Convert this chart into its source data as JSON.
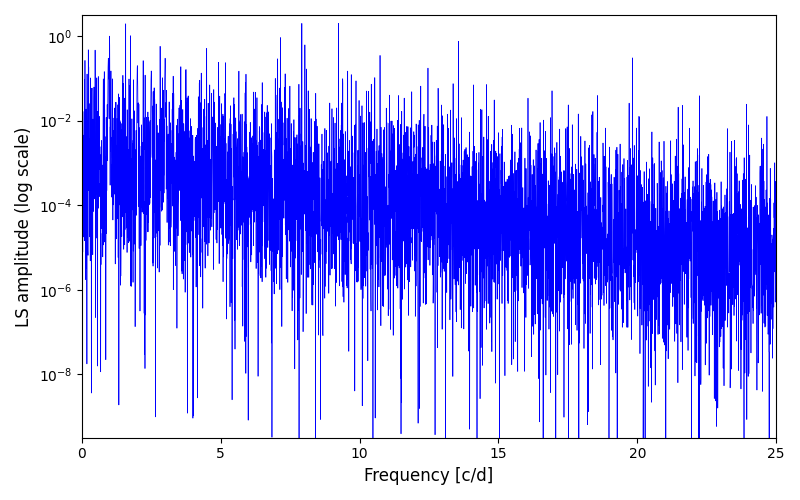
{
  "title": "",
  "xlabel": "Frequency [c/d]",
  "ylabel": "LS amplitude (log scale)",
  "xlim": [
    0,
    25
  ],
  "ylim_log": [
    -9.5,
    0.5
  ],
  "line_color": "#0000ff",
  "line_width": 0.5,
  "figsize": [
    8.0,
    5.0
  ],
  "dpi": 100,
  "freq_min": 0.0,
  "freq_max": 25.0,
  "n_points": 5000,
  "random_seed": 7,
  "background_color": "#ffffff",
  "yticks": [
    1e-08,
    1e-06,
    0.0001,
    0.01,
    1.0
  ],
  "xticks": [
    0,
    5,
    10,
    15,
    20,
    25
  ]
}
